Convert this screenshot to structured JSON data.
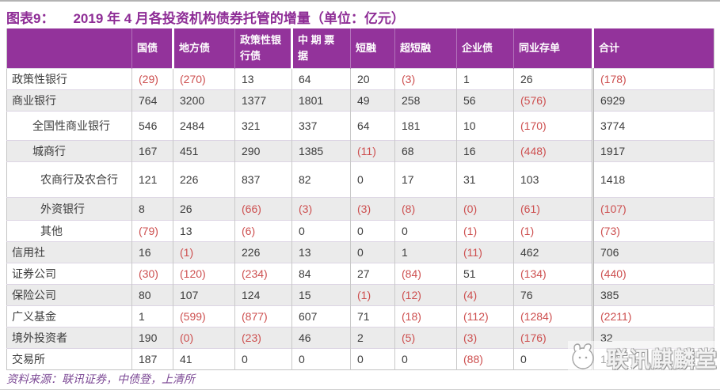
{
  "title": {
    "label": "图表9：",
    "text": "2019 年 4 月各投资机构债券托管的增量（单位：亿元）"
  },
  "chart_data": {
    "type": "table",
    "title": "2019 年 4 月各投资机构债券托管的增量（单位：亿元）",
    "note": "values in parentheses are negative, shown in red",
    "columns": [
      "",
      "国债",
      "地方债",
      "政策性银行债",
      "中 期 票 据",
      "短融",
      "超短融",
      "企业债",
      "同业存单",
      "合计"
    ],
    "rows": [
      {
        "label": "政策性银行",
        "indent": 0,
        "values": [
          "(29)",
          "(270)",
          "13",
          "64",
          "20",
          "(3)",
          "1",
          "26",
          "(178)"
        ]
      },
      {
        "label": "商业银行",
        "indent": 0,
        "values": [
          "764",
          "3200",
          "1377",
          "1801",
          "49",
          "258",
          "56",
          "(576)",
          "6929"
        ]
      },
      {
        "label": "全国性商业银行",
        "indent": 1,
        "values": [
          "546",
          "2484",
          "321",
          "337",
          "64",
          "181",
          "10",
          "(170)",
          "3774"
        ]
      },
      {
        "label": "城商行",
        "indent": 1,
        "values": [
          "167",
          "451",
          "290",
          "1385",
          "(11)",
          "68",
          "16",
          "(448)",
          "1917"
        ]
      },
      {
        "label": "农商行及农合行",
        "indent": 2,
        "values": [
          "121",
          "226",
          "837",
          "82",
          "0",
          "17",
          "31",
          "103",
          "1418"
        ]
      },
      {
        "label": "外资银行",
        "indent": 2,
        "values": [
          "8",
          "26",
          "(66)",
          "(3)",
          "(3)",
          "(8)",
          "(0)",
          "(61)",
          "(107)"
        ]
      },
      {
        "label": "其他",
        "indent": 2,
        "values": [
          "(79)",
          "13",
          "(6)",
          "0",
          "0",
          "0",
          "(1)",
          "(1)",
          "(73)"
        ]
      },
      {
        "label": "信用社",
        "indent": 0,
        "values": [
          "16",
          "(1)",
          "226",
          "13",
          "0",
          "1",
          "(11)",
          "462",
          "706"
        ]
      },
      {
        "label": "证券公司",
        "indent": 0,
        "values": [
          "(30)",
          "(120)",
          "(234)",
          "84",
          "27",
          "(84)",
          "51",
          "(134)",
          "(440)"
        ]
      },
      {
        "label": "保险公司",
        "indent": 0,
        "values": [
          "80",
          "107",
          "124",
          "15",
          "(1)",
          "(12)",
          "(4)",
          "76",
          "385"
        ]
      },
      {
        "label": "广义基金",
        "indent": 0,
        "values": [
          "1",
          "(599)",
          "(877)",
          "607",
          "71",
          "(18)",
          "(112)",
          "(1284)",
          "(2211)"
        ]
      },
      {
        "label": "境外投资者",
        "indent": 0,
        "values": [
          "190",
          "(0)",
          "(23)",
          "46",
          "2",
          "(5)",
          "(3)",
          "(176)",
          "32"
        ]
      },
      {
        "label": "交易所",
        "indent": 0,
        "values": [
          "187",
          "41",
          "0",
          "0",
          "0",
          "0",
          "(88)",
          "0",
          "140"
        ]
      }
    ]
  },
  "source": "资料来源：联讯证券，中债登，上清所",
  "watermark": {
    "text": "联讯麒麟堂"
  },
  "colors": {
    "header_purple": "#93339b",
    "title_purple": "#8e2d96",
    "negative_red": "#cd4f4f",
    "stripe_gray": "#ebebeb",
    "source_purple": "#7d4a96"
  }
}
